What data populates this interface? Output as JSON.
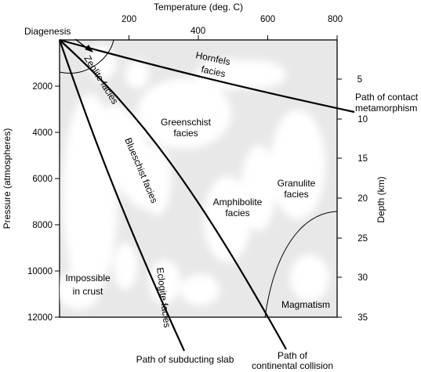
{
  "axes": {
    "top": {
      "label": "Temperature (deg. C)",
      "ticks": [
        "200",
        "400",
        "600",
        "800"
      ]
    },
    "left": {
      "label": "Pressure (atmospheres)",
      "ticks": [
        "2000",
        "4000",
        "6000",
        "8000",
        "10000",
        "12000"
      ]
    },
    "right": {
      "label": "Depth (km)",
      "ticks": [
        "5",
        "10",
        "15",
        "20",
        "25",
        "30",
        "35"
      ]
    }
  },
  "facies": {
    "diagenesis": "Diagenesis",
    "zeolite": "Zeolite facies",
    "hornfels": [
      "Hornfels",
      "facies"
    ],
    "greenschist": [
      "Greenschist",
      "facies"
    ],
    "blueschist": "Blueschist facies",
    "amphibolite": [
      "Amphibolite",
      "facies"
    ],
    "granulite": [
      "Granulite",
      "facies"
    ],
    "eclogite": "Eclogite facies",
    "impossible": [
      "Impossible",
      "in crust"
    ],
    "magmatism": "Magmatism"
  },
  "paths": {
    "contact": [
      "Path of contact",
      "metamorphism"
    ],
    "subducting": "Path of subducting slab",
    "continental": [
      "Path of",
      "continental collision"
    ]
  },
  "colors": {
    "region_fill": "#e8e8e8",
    "line": "#000000"
  }
}
